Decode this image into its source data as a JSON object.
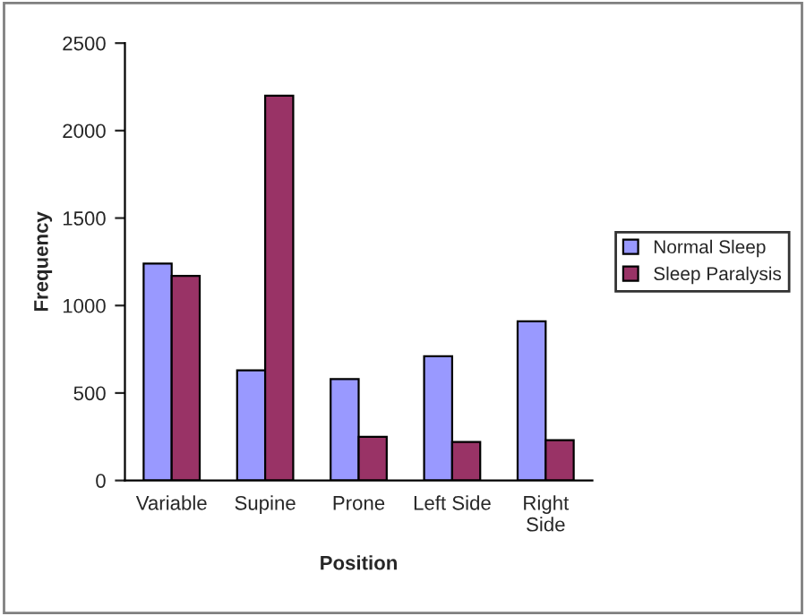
{
  "chart_data": {
    "type": "bar",
    "xlabel": "Position",
    "ylabel": "Frequency",
    "categories": [
      "Variable",
      "Supine",
      "Prone",
      "Left Side",
      "Right\nSide"
    ],
    "series": [
      {
        "name": "Normal Sleep",
        "color": "#9999ff",
        "values": [
          1240,
          630,
          580,
          710,
          910
        ]
      },
      {
        "name": "Sleep Paralysis",
        "color": "#993366",
        "values": [
          1170,
          2200,
          250,
          220,
          230
        ]
      }
    ],
    "ylim": [
      0,
      2500
    ],
    "yticks": [
      0,
      500,
      1000,
      1500,
      2000,
      2500
    ],
    "grid": false,
    "legend": "right"
  }
}
